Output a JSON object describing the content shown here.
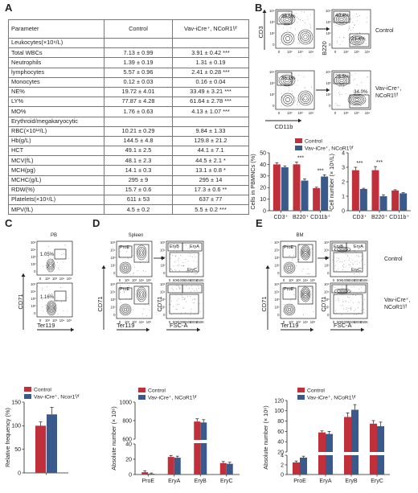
{
  "panels": {
    "A": "A",
    "B": "B",
    "C": "C",
    "D": "D",
    "E": "E"
  },
  "table": {
    "header": [
      "Parameter",
      "Control",
      "Vav-iCre⁺, NCoR1ᶠ/ᶠ"
    ],
    "rows": [
      {
        "kind": "section",
        "cells": [
          "Leukocytes(×10⁹/L)",
          "",
          ""
        ]
      },
      {
        "kind": "row",
        "cells": [
          "Total WBCs",
          "7.13 ± 0.99",
          "3.91 ± 0.42 ***"
        ]
      },
      {
        "kind": "row",
        "cells": [
          "Neutrophils",
          "1.39 ± 0.19",
          "1.31 ± 0.19"
        ]
      },
      {
        "kind": "row",
        "cells": [
          "lymphocytes",
          "5.57 ± 0.96",
          "2.41 ± 0.28 ***"
        ]
      },
      {
        "kind": "row",
        "cells": [
          "Monocytes",
          "0.12 ± 0.03",
          "0.16 ± 0.04"
        ]
      },
      {
        "kind": "row",
        "cells": [
          "NE%",
          "19.72 ± 4.01",
          "33.49 ± 3.21 ***"
        ]
      },
      {
        "kind": "row",
        "cells": [
          "LY%",
          "77.87 ± 4.28",
          "61.64 ± 2.78 ***"
        ]
      },
      {
        "kind": "row",
        "cells": [
          "MO%",
          "1.76 ± 0.63",
          "4.13 ± 1.07 ***"
        ]
      },
      {
        "kind": "section",
        "cells": [
          "Erythroid/megakaryocytic",
          "",
          ""
        ]
      },
      {
        "kind": "row",
        "cells": [
          "RBC(×10¹²/L)",
          "10.21 ± 0.29",
          "9.84 ± 1.33"
        ]
      },
      {
        "kind": "row",
        "cells": [
          "Hb(g/L)",
          "144.5 ± 4.8",
          "129.8 ± 21.2"
        ]
      },
      {
        "kind": "row",
        "cells": [
          "HCT",
          "49.1 ± 2.5",
          "44.1 ± 7.1"
        ]
      },
      {
        "kind": "row",
        "cells": [
          "MCV(fL)",
          "48.1 ± 2.3",
          "44.5 ± 2.1 *"
        ]
      },
      {
        "kind": "row",
        "cells": [
          "MCH(pg)",
          "14.1 ± 0.3",
          "13.1 ± 0.8 *"
        ]
      },
      {
        "kind": "row",
        "cells": [
          "MCHC(g/L)",
          "295 ± 9",
          "295 ± 14"
        ]
      },
      {
        "kind": "row",
        "cells": [
          "RDW(%)",
          "15.7 ± 0.6",
          "17.3 ± 0.6 **"
        ]
      },
      {
        "kind": "row",
        "cells": [
          "Platelets(×10⁹/L)",
          "611 ± 53",
          "637 ± 77"
        ]
      },
      {
        "kind": "row",
        "cells": [
          "MPV(fL)",
          "4.5 ± 0.2",
          "5.5 ± 0.2 ***"
        ]
      }
    ]
  },
  "facs_B": {
    "left_top_pct": "36.5%",
    "left_bottom_pct": "35.1%",
    "right_top_pct1": "40.4%",
    "right_top_pct2": "21.4%",
    "right_bottom_pct1": "25.5%",
    "right_bottom_pct2": "34.0%",
    "ylabel_left": "CD3",
    "xlabel_left": "CD11b",
    "ylabel_right": "B220",
    "label_control": "Control",
    "label_ko_1": "Vav-iCre⁺,",
    "label_ko_2": "NCoR1ᶠ/ᶠ"
  },
  "facs_C": {
    "title": "PB",
    "pct_top": "1.05%",
    "pct_bottom": "1.16%",
    "ylabel": "CD71",
    "xlabel": "Ter119"
  },
  "facs_D": {
    "title": "Spleen",
    "proe": "ProE",
    "eryb": "EryB",
    "erya": "EryA",
    "eryc": "EryC",
    "ylabel": "CD71",
    "xlabel1": "Ter119",
    "xlabel2": "FSC-A"
  },
  "facs_E": {
    "title": "BM",
    "proe": "ProE",
    "eryb": "EryB",
    "erya": "EryA",
    "eryc": "EryC",
    "ylabel": "CD71",
    "xlabel1": "Ter119",
    "xlabel2": "FSC-A",
    "label_control": "Control",
    "label_ko_1": "Vav-iCre⁺,",
    "label_ko_2": "NCoR1ᶠ/ᶠ"
  },
  "tick_labels": {
    "log": [
      "0",
      "10²",
      "10³",
      "10⁴",
      "10⁵"
    ],
    "fsc": [
      "0",
      "50K",
      "100K",
      "150K",
      "200K",
      "250K"
    ]
  },
  "colors": {
    "control": "#c0303a",
    "ko": "#3a5a8c"
  },
  "chart_data": [
    {
      "id": "B1",
      "type": "bar",
      "ylabel": "Cells in PBMNCs (%)",
      "ylim": [
        0,
        50
      ],
      "yticks": [
        0,
        10,
        20,
        30,
        40,
        50
      ],
      "categories": [
        "CD3⁺",
        "B220⁺",
        "CD11b⁺"
      ],
      "legend": [
        "Control",
        "Vav-iCre⁺, NCoR1ᶠ/ᶠ"
      ],
      "series": [
        {
          "name": "Control",
          "values": [
            40,
            40,
            19.5
          ],
          "err": [
            1.5,
            2,
            0.8
          ]
        },
        {
          "name": "Vav-iCre⁺, NCoR1ᶠ/ᶠ",
          "values": [
            37.5,
            26,
            29.5
          ],
          "err": [
            1.2,
            1.5,
            1.5
          ]
        }
      ],
      "signif": [
        {
          "cat": 1,
          "text": "***"
        },
        {
          "cat": 2,
          "text": "***"
        }
      ]
    },
    {
      "id": "B2",
      "type": "bar",
      "ylabel": "Cell number (× 10⁹/L)",
      "ylim": [
        0,
        4
      ],
      "yticks": [
        0,
        1,
        2,
        3,
        4
      ],
      "categories": [
        "CD3⁺",
        "B220⁺",
        "CD11b⁺"
      ],
      "legend": [
        "Control",
        "Vav-iCre⁺, NCoR1ᶠ/ᶠ"
      ],
      "series": [
        {
          "name": "Control",
          "values": [
            2.8,
            2.8,
            1.4
          ],
          "err": [
            0.2,
            0.25,
            0.05
          ]
        },
        {
          "name": "Vav-iCre⁺, NCoR1ᶠ/ᶠ",
          "values": [
            1.5,
            1.0,
            1.2
          ],
          "err": [
            0.05,
            0.1,
            0.05
          ]
        }
      ],
      "signif": [
        {
          "cat": 0,
          "text": "***"
        },
        {
          "cat": 1,
          "text": "***"
        }
      ]
    },
    {
      "id": "C",
      "type": "bar",
      "ylabel": "Relative frequency (%)",
      "ylim": [
        0,
        150
      ],
      "yticks": [
        0,
        50,
        100,
        150
      ],
      "categories": [
        ""
      ],
      "legend": [
        "Control",
        "Vav-iCre⁺, Ncor1ᶠ/ᶠ"
      ],
      "series": [
        {
          "name": "Control",
          "values": [
            100
          ],
          "err": [
            8
          ]
        },
        {
          "name": "Vav-iCre⁺, Ncor1ᶠ/ᶠ",
          "values": [
            124
          ],
          "err": [
            15
          ]
        }
      ],
      "signif": []
    },
    {
      "id": "D",
      "type": "bar",
      "ylabel": "Absolute number (× 10⁶)",
      "broken_axis": true,
      "yticks_low": [
        0,
        20,
        40
      ],
      "yticks_high": [
        600,
        800,
        1000
      ],
      "categories": [
        "ProE",
        "EryA",
        "EryB",
        "EryC"
      ],
      "legend": [
        "Control",
        "Vav-iCre⁺, NCoR1ᶠ/ᶠ"
      ],
      "series": [
        {
          "name": "Control",
          "values": [
            3,
            23,
            790,
            15
          ],
          "err": [
            2,
            2,
            30,
            2
          ]
        },
        {
          "name": "Vav-iCre⁺, NCoR1ᶠ/ᶠ",
          "values": [
            1,
            22,
            780,
            14
          ],
          "err": [
            1,
            2,
            30,
            2
          ]
        }
      ],
      "signif": []
    },
    {
      "id": "E",
      "type": "bar",
      "ylabel": "Absolute number (× 10⁶)",
      "broken_axis": true,
      "yticks_low": [
        0,
        2,
        4
      ],
      "yticks_high": [
        20,
        40,
        60,
        80,
        100,
        120
      ],
      "categories": [
        "ProE",
        "EryA",
        "EryB",
        "EryC"
      ],
      "legend": [
        "Control",
        "Vav-iCre⁺, NCoR1ᶠ/ᶠ"
      ],
      "series": [
        {
          "name": "Control",
          "values": [
            2.5,
            58,
            88,
            75
          ],
          "err": [
            0.3,
            3,
            8,
            6
          ]
        },
        {
          "name": "Vav-iCre⁺, NCoR1ᶠ/ᶠ",
          "values": [
            3.5,
            55,
            102,
            70
          ],
          "err": [
            0.3,
            5,
            10,
            8
          ]
        }
      ],
      "signif": []
    }
  ]
}
